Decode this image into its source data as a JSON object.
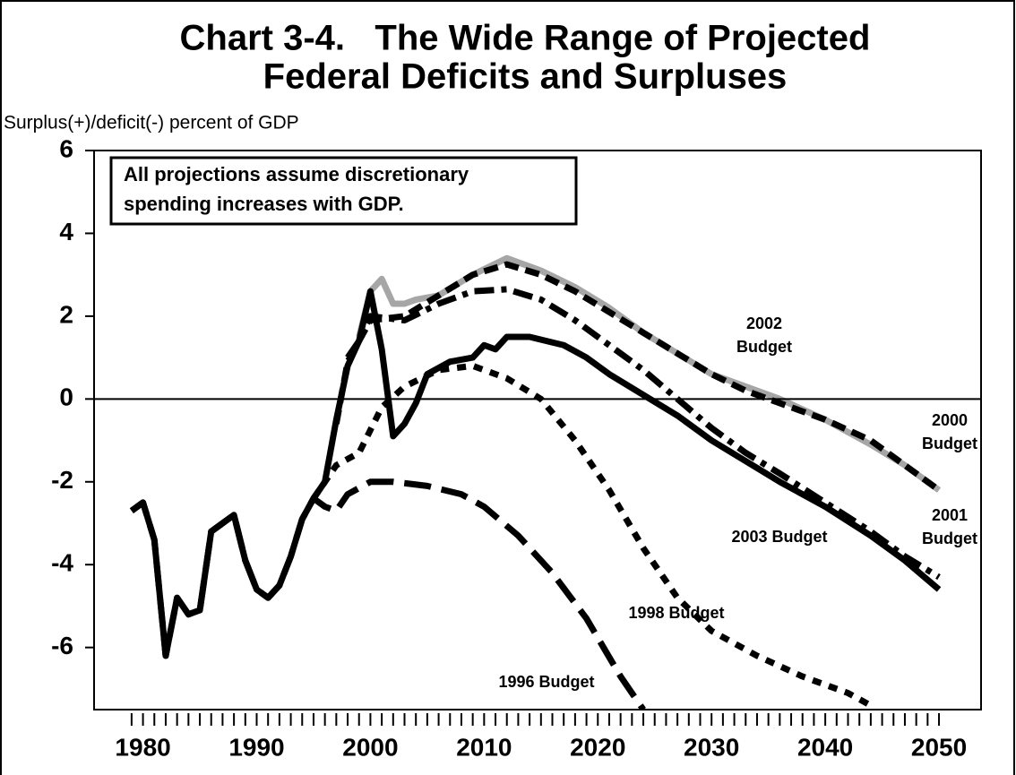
{
  "chart_data": {
    "type": "line",
    "title": [
      "Chart 3-4.   The Wide Range of Projected",
      "Federal Deficits and Surpluses"
    ],
    "y_label": "Surplus(+)/deficit(-) percent of GDP",
    "annotation": [
      "All projections assume discretionary",
      "spending increases with GDP."
    ],
    "xlim": [
      1975.7,
      2053.7
    ],
    "ylim": [
      -7.5,
      6
    ],
    "xticks": [
      1980,
      1990,
      2000,
      2010,
      2020,
      2030,
      2040,
      2050
    ],
    "xminor_ticks": [
      1979,
      1980,
      1981,
      1982,
      1983,
      1984,
      1985,
      1986,
      1987,
      1988,
      1989,
      1990,
      1991,
      1992,
      1993,
      1994,
      1995,
      1996,
      1997,
      1998,
      1999,
      2000,
      2001,
      2002,
      2003,
      2004,
      2005,
      2006,
      2007,
      2008,
      2009,
      2010,
      2011,
      2012,
      2013,
      2014,
      2015,
      2016,
      2017,
      2018,
      2019,
      2020,
      2021,
      2022,
      2023,
      2024,
      2025,
      2026,
      2027,
      2028,
      2029,
      2030,
      2031,
      2032,
      2033,
      2034,
      2035,
      2036,
      2037,
      2038,
      2039,
      2040,
      2041,
      2042,
      2043,
      2044,
      2045,
      2046,
      2047,
      2048,
      2049,
      2050
    ],
    "yticks": [
      6,
      4,
      2,
      0,
      -2,
      -4,
      -6
    ],
    "zero_line": true,
    "series": [
      {
        "name": "2002 Budget",
        "color": "#a6a6a6",
        "style": "solid",
        "x": [
          1999,
          2000,
          2001,
          2002,
          2003,
          2004,
          2006,
          2009,
          2012,
          2015,
          2018,
          2021,
          2024,
          2027,
          2030,
          2033,
          2036,
          2040,
          2044,
          2047,
          2050
        ],
        "values": [
          1.5,
          2.6,
          2.9,
          2.3,
          2.3,
          2.4,
          2.5,
          3.0,
          3.4,
          3.1,
          2.7,
          2.2,
          1.6,
          1.1,
          0.6,
          0.3,
          0.0,
          -0.5,
          -1.1,
          -1.6,
          -2.2
        ]
      },
      {
        "name": "2000 Budget",
        "color": "#000000",
        "style": "dashed",
        "x": [
          1997,
          1998,
          1999,
          2000,
          2003,
          2006,
          2009,
          2012,
          2015,
          2018,
          2021,
          2024,
          2027,
          2030,
          2033,
          2036,
          2040,
          2044,
          2047,
          2050
        ],
        "values": [
          -0.6,
          0.9,
          1.4,
          1.9,
          2.0,
          2.5,
          3.0,
          3.25,
          3.0,
          2.6,
          2.1,
          1.6,
          1.1,
          0.6,
          0.2,
          -0.1,
          -0.5,
          -1.0,
          -1.6,
          -2.2
        ]
      },
      {
        "name": "2001 Budget",
        "color": "#000000",
        "style": "dashdot",
        "x": [
          1998,
          1999,
          2000,
          2003,
          2006,
          2009,
          2012,
          2015,
          2018,
          2021,
          2024,
          2027,
          2030,
          2033,
          2036,
          2040,
          2044,
          2047,
          2050
        ],
        "values": [
          1.0,
          1.4,
          2.0,
          1.9,
          2.3,
          2.6,
          2.65,
          2.4,
          1.9,
          1.3,
          0.7,
          0.0,
          -0.7,
          -1.3,
          -1.8,
          -2.5,
          -3.2,
          -3.8,
          -4.3
        ]
      },
      {
        "name": "2003 Budget",
        "color": "#000000",
        "style": "solid",
        "x": [
          1979,
          1980,
          1981,
          1982,
          1983,
          1984,
          1985,
          1986,
          1987,
          1988,
          1989,
          1990,
          1991,
          1992,
          1993,
          1994,
          1995,
          1996,
          1997,
          1998,
          1999,
          2000,
          2001,
          2002,
          2003,
          2004,
          2005,
          2007,
          2009,
          2010,
          2011,
          2012,
          2014,
          2017,
          2019,
          2021,
          2024,
          2027,
          2030,
          2033,
          2036,
          2040,
          2044,
          2047,
          2050
        ],
        "values": [
          -2.7,
          -2.5,
          -3.4,
          -6.2,
          -4.8,
          -5.2,
          -5.1,
          -3.2,
          -3.0,
          -2.8,
          -3.9,
          -4.6,
          -4.8,
          -4.5,
          -3.8,
          -2.9,
          -2.4,
          -2.0,
          -0.5,
          0.8,
          1.4,
          2.6,
          1.2,
          -0.9,
          -0.6,
          -0.1,
          0.6,
          0.9,
          1.0,
          1.3,
          1.2,
          1.5,
          1.5,
          1.3,
          1.0,
          0.6,
          0.1,
          -0.4,
          -1.0,
          -1.5,
          -2.0,
          -2.6,
          -3.3,
          -3.9,
          -4.6
        ]
      },
      {
        "name": "1998 Budget",
        "color": "#000000",
        "style": "dotted",
        "x": [
          1995,
          1997,
          1999,
          2001,
          2003,
          2006,
          2009,
          2012,
          2015,
          2018,
          2021,
          2024,
          2027,
          2030,
          2034,
          2038,
          2042,
          2044
        ],
        "values": [
          -2.4,
          -1.6,
          -1.3,
          -0.2,
          0.3,
          0.7,
          0.8,
          0.5,
          0.0,
          -1.0,
          -2.2,
          -3.6,
          -4.8,
          -5.6,
          -6.2,
          -6.7,
          -7.1,
          -7.4
        ]
      },
      {
        "name": "1996 Budget",
        "color": "#000000",
        "style": "longdash",
        "x": [
          1979,
          1980,
          1981,
          1982,
          1983,
          1984,
          1985,
          1986,
          1987,
          1988,
          1989,
          1990,
          1991,
          1992,
          1993,
          1994,
          1995,
          1996,
          1997,
          1998,
          2000,
          2002,
          2005,
          2008,
          2010,
          2013,
          2016,
          2019,
          2022,
          2024
        ],
        "values": [
          -2.7,
          -2.5,
          -3.4,
          -6.2,
          -4.8,
          -5.2,
          -5.1,
          -3.2,
          -3.0,
          -2.8,
          -3.9,
          -4.6,
          -4.8,
          -4.5,
          -3.8,
          -2.9,
          -2.4,
          -2.6,
          -2.7,
          -2.3,
          -2.0,
          -2.0,
          -2.1,
          -2.3,
          -2.6,
          -3.3,
          -4.2,
          -5.3,
          -6.7,
          -7.5
        ]
      }
    ]
  }
}
